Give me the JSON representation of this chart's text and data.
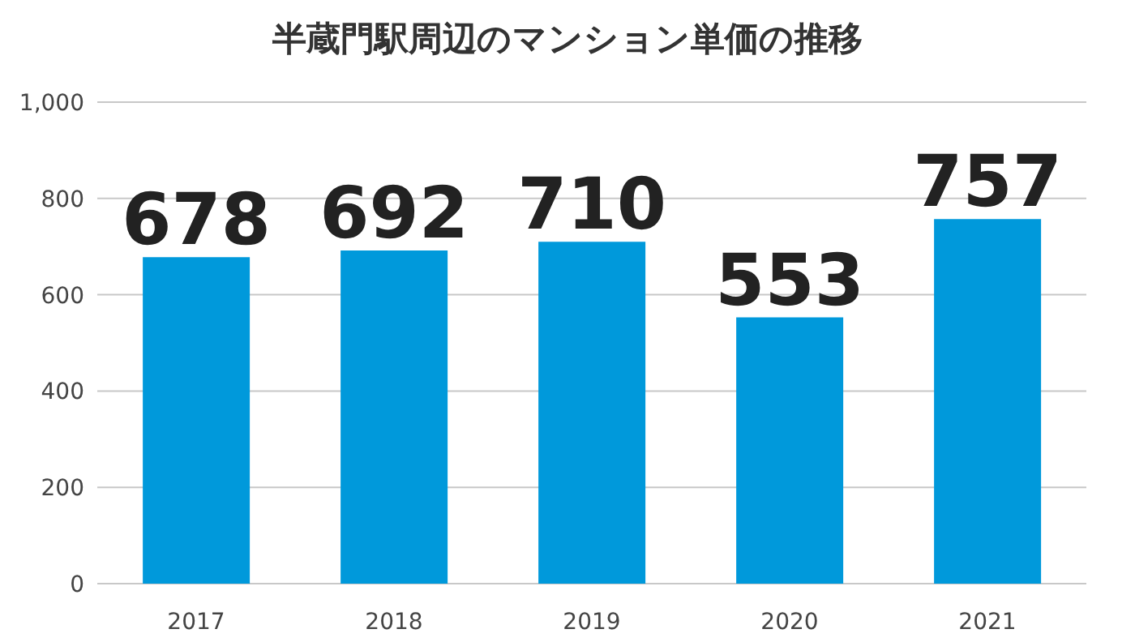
{
  "chart_data": {
    "type": "bar",
    "title": "半蔵門駅周辺のマンション単価の推移",
    "categories": [
      "2017",
      "2018",
      "2019",
      "2020",
      "2021"
    ],
    "values": [
      678,
      692,
      710,
      553,
      757
    ],
    "color": "#0099db",
    "ylim": [
      0,
      1000
    ],
    "yticks": [
      0,
      200,
      400,
      600,
      800,
      {
        "value": 1000,
        "label": "1,000"
      }
    ],
    "grid": "y",
    "data_labels": true
  }
}
